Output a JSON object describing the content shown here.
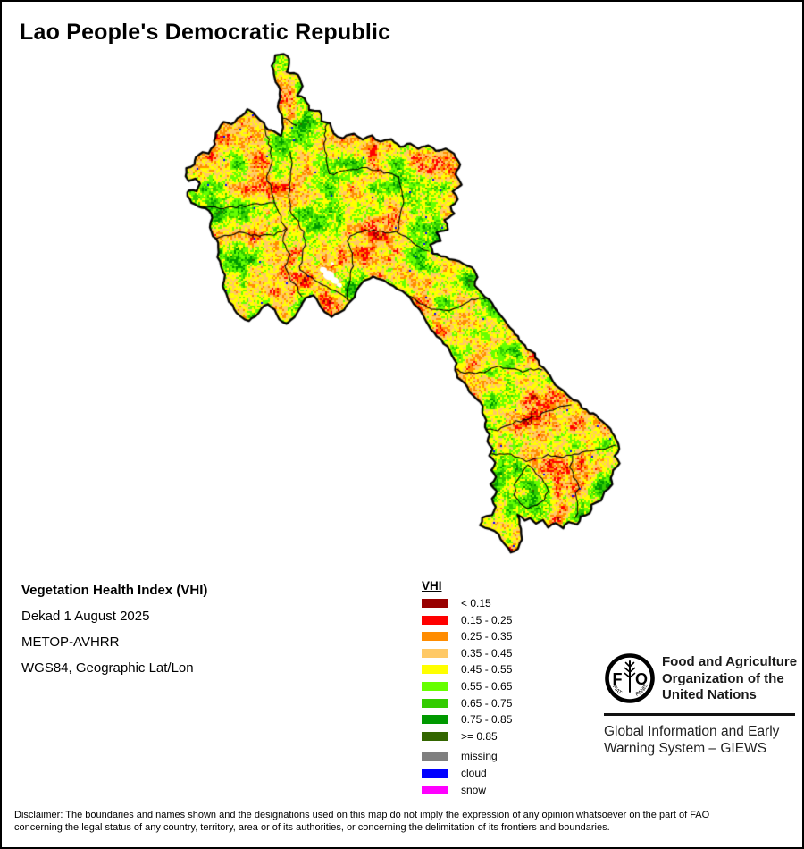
{
  "title": "Lao People's Democratic Republic",
  "info": {
    "product": "Vegetation Health Index (VHI)",
    "dekad": "Dekad 1 August 2025",
    "sensor": "METOP-AVHRR",
    "projection": "WGS84, Geographic Lat/Lon"
  },
  "legend": {
    "title": "VHI",
    "classes": [
      {
        "label": "< 0.15",
        "color": "#990000"
      },
      {
        "label": "0.15 - 0.25",
        "color": "#FF0000"
      },
      {
        "label": "0.25 - 0.35",
        "color": "#FF8C00"
      },
      {
        "label": "0.35 - 0.45",
        "color": "#FFC966"
      },
      {
        "label": "0.45 - 0.55",
        "color": "#FFFF00"
      },
      {
        "label": "0.55 - 0.65",
        "color": "#66FF00"
      },
      {
        "label": "0.65 - 0.75",
        "color": "#33CC00"
      },
      {
        "label": "0.75 - 0.85",
        "color": "#009900"
      },
      {
        "label": ">= 0.85",
        "color": "#336600"
      }
    ],
    "extra": [
      {
        "label": "missing",
        "color": "#7F7F7F"
      },
      {
        "label": "cloud",
        "color": "#0000FF"
      },
      {
        "label": "snow",
        "color": "#FF00FF"
      }
    ]
  },
  "branding": {
    "fao_lines": [
      "Food and Agriculture",
      "Organization of the",
      "United Nations"
    ],
    "motto_left": "FIAT",
    "motto_right": "PANIS",
    "giews_lines": [
      "Global Information and Early",
      "Warning System – GIEWS"
    ]
  },
  "disclaimer_lines": [
    "Disclaimer: The boundaries and names shown and the designations used on this map do not imply the expression of any opinion whatsoever on the part of FAO",
    "concerning the legal status of any country, territory, area or of its authorities, or concerning the delimitation of its frontiers and boundaries."
  ],
  "map": {
    "palette": [
      "#990000",
      "#FF0000",
      "#FF8C00",
      "#FFC966",
      "#FFFF00",
      "#66FF00",
      "#33CC00",
      "#009900",
      "#336600"
    ],
    "cloud_color": "#0000FF",
    "missing_patch_color": "#FFFFFF",
    "border_color": "#000000",
    "background": "#FFFFFF"
  }
}
